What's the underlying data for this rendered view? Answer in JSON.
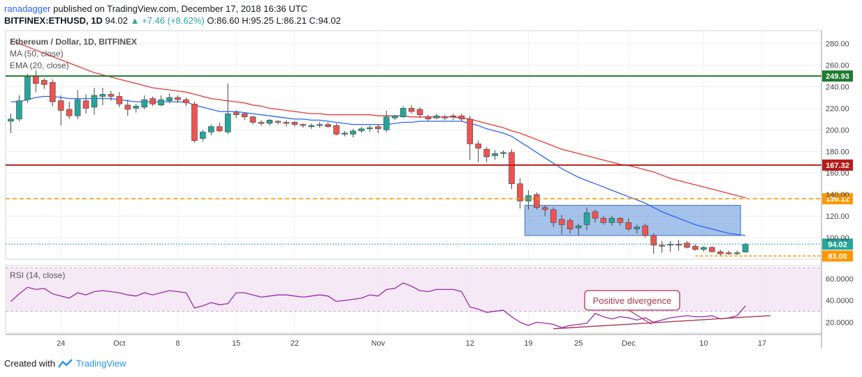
{
  "header": {
    "author": "ranadagger",
    "published": "published on TradingView.com, December 17, 2018 16:36 UTC",
    "symbol": "BITFINEX:ETHUSD, 1D",
    "price": "94.02",
    "change": "▲ +7.46 (+8.62%)",
    "ohlc_o": "O:86.60",
    "ohlc_h": "H:95.25",
    "ohlc_l": "L:86.21",
    "ohlc_c": "C:94.02"
  },
  "legend": {
    "title": "Ethereum / Dollar, 1D, BITFINEX",
    "ma": "MA (50, close)",
    "ema": "EMA (20, close)",
    "rsi": "RSI (14, close)"
  },
  "annotation": "Positive divergence",
  "footer": {
    "created": "Created with",
    "brand": "TradingView"
  },
  "colors": {
    "up": "#26a69a",
    "down": "#ef5350",
    "ma": "#e53935",
    "ema": "#2962ff",
    "support_green": "#1e7a2e",
    "resistance_red": "#b71c1c",
    "orange": "#ff9800",
    "range_box": "#5b8fd9",
    "rsi_line": "#9c27b0",
    "rsi_band": "#f3e5f5"
  },
  "chart_data": [
    {
      "type": "candlestick",
      "title": "Ethereum / Dollar, 1D, BITFINEX",
      "ylim": [
        80,
        292
      ],
      "y_ticks": [
        100,
        120,
        140,
        160,
        180,
        200,
        220,
        240,
        260,
        280
      ],
      "y_tick_labels": [
        "100.00",
        "120.00",
        "140.00",
        "160.00",
        "180.00",
        "200.00",
        "220.00",
        "240.00",
        "260.00",
        "280.00"
      ],
      "x_tick_labels": [
        {
          "index": 6,
          "label": "24"
        },
        {
          "index": 13,
          "label": "Oct"
        },
        {
          "index": 20,
          "label": "8"
        },
        {
          "index": 27,
          "label": "15"
        },
        {
          "index": 34,
          "label": "22"
        },
        {
          "index": 44,
          "label": "Nov"
        },
        {
          "index": 55,
          "label": "12"
        },
        {
          "index": 62,
          "label": "19"
        },
        {
          "index": 68,
          "label": "25"
        },
        {
          "index": 74,
          "label": "Dec"
        },
        {
          "index": 83,
          "label": "10"
        },
        {
          "index": 90,
          "label": "17"
        }
      ],
      "candles": [
        {
          "o": 208,
          "h": 215,
          "l": 197,
          "c": 210
        },
        {
          "o": 210,
          "h": 232,
          "l": 208,
          "c": 227
        },
        {
          "o": 228,
          "h": 252,
          "l": 225,
          "c": 249
        },
        {
          "o": 250,
          "h": 255,
          "l": 235,
          "c": 243
        },
        {
          "o": 246,
          "h": 248,
          "l": 238,
          "c": 242
        },
        {
          "o": 244,
          "h": 247,
          "l": 222,
          "c": 226
        },
        {
          "o": 227,
          "h": 232,
          "l": 204,
          "c": 218
        },
        {
          "o": 219,
          "h": 226,
          "l": 210,
          "c": 213
        },
        {
          "o": 213,
          "h": 237,
          "l": 210,
          "c": 228
        },
        {
          "o": 227,
          "h": 233,
          "l": 215,
          "c": 220
        },
        {
          "o": 221,
          "h": 239,
          "l": 214,
          "c": 232
        },
        {
          "o": 231,
          "h": 239,
          "l": 223,
          "c": 233
        },
        {
          "o": 233,
          "h": 236,
          "l": 227,
          "c": 231
        },
        {
          "o": 231,
          "h": 235,
          "l": 221,
          "c": 224
        },
        {
          "o": 223,
          "h": 228,
          "l": 213,
          "c": 219
        },
        {
          "o": 220,
          "h": 224,
          "l": 216,
          "c": 222
        },
        {
          "o": 221,
          "h": 232,
          "l": 219,
          "c": 228
        },
        {
          "o": 229,
          "h": 231,
          "l": 222,
          "c": 224
        },
        {
          "o": 223,
          "h": 232,
          "l": 222,
          "c": 228
        },
        {
          "o": 227,
          "h": 234,
          "l": 225,
          "c": 230
        },
        {
          "o": 230,
          "h": 232,
          "l": 225,
          "c": 228
        },
        {
          "o": 228,
          "h": 230,
          "l": 222,
          "c": 225
        },
        {
          "o": 224,
          "h": 226,
          "l": 188,
          "c": 190
        },
        {
          "o": 192,
          "h": 200,
          "l": 189,
          "c": 198
        },
        {
          "o": 198,
          "h": 205,
          "l": 195,
          "c": 203
        },
        {
          "o": 203,
          "h": 207,
          "l": 198,
          "c": 199
        },
        {
          "o": 198,
          "h": 243,
          "l": 196,
          "c": 215
        },
        {
          "o": 216,
          "h": 218,
          "l": 211,
          "c": 214
        },
        {
          "o": 215,
          "h": 216,
          "l": 209,
          "c": 212
        },
        {
          "o": 212,
          "h": 213,
          "l": 205,
          "c": 207
        },
        {
          "o": 207,
          "h": 209,
          "l": 204,
          "c": 206
        },
        {
          "o": 206,
          "h": 210,
          "l": 204,
          "c": 209
        },
        {
          "o": 208,
          "h": 209,
          "l": 205,
          "c": 207
        },
        {
          "o": 207,
          "h": 209,
          "l": 203,
          "c": 206
        },
        {
          "o": 207,
          "h": 208,
          "l": 203,
          "c": 205
        },
        {
          "o": 205,
          "h": 206,
          "l": 202,
          "c": 204
        },
        {
          "o": 203,
          "h": 206,
          "l": 201,
          "c": 204
        },
        {
          "o": 204,
          "h": 207,
          "l": 202,
          "c": 205
        },
        {
          "o": 205,
          "h": 207,
          "l": 202,
          "c": 203
        },
        {
          "o": 204,
          "h": 206,
          "l": 195,
          "c": 196
        },
        {
          "o": 196,
          "h": 199,
          "l": 194,
          "c": 197
        },
        {
          "o": 196,
          "h": 201,
          "l": 193,
          "c": 199
        },
        {
          "o": 199,
          "h": 203,
          "l": 197,
          "c": 201
        },
        {
          "o": 201,
          "h": 204,
          "l": 198,
          "c": 202
        },
        {
          "o": 203,
          "h": 205,
          "l": 197,
          "c": 201
        },
        {
          "o": 200,
          "h": 218,
          "l": 198,
          "c": 212
        },
        {
          "o": 211,
          "h": 214,
          "l": 209,
          "c": 213
        },
        {
          "o": 212,
          "h": 222,
          "l": 211,
          "c": 220
        },
        {
          "o": 220,
          "h": 223,
          "l": 215,
          "c": 217
        },
        {
          "o": 219,
          "h": 221,
          "l": 211,
          "c": 214
        },
        {
          "o": 212,
          "h": 214,
          "l": 208,
          "c": 210
        },
        {
          "o": 211,
          "h": 215,
          "l": 210,
          "c": 213
        },
        {
          "o": 212,
          "h": 214,
          "l": 209,
          "c": 211
        },
        {
          "o": 213,
          "h": 215,
          "l": 209,
          "c": 212
        },
        {
          "o": 213,
          "h": 215,
          "l": 208,
          "c": 210
        },
        {
          "o": 210,
          "h": 213,
          "l": 172,
          "c": 187
        },
        {
          "o": 187,
          "h": 190,
          "l": 170,
          "c": 183
        },
        {
          "o": 182,
          "h": 184,
          "l": 170,
          "c": 175
        },
        {
          "o": 176,
          "h": 181,
          "l": 172,
          "c": 178
        },
        {
          "o": 178,
          "h": 181,
          "l": 174,
          "c": 179
        },
        {
          "o": 179,
          "h": 182,
          "l": 145,
          "c": 150
        },
        {
          "o": 150,
          "h": 155,
          "l": 127,
          "c": 134
        },
        {
          "o": 134,
          "h": 144,
          "l": 126,
          "c": 139
        },
        {
          "o": 140,
          "h": 142,
          "l": 126,
          "c": 128
        },
        {
          "o": 128,
          "h": 130,
          "l": 120,
          "c": 126
        },
        {
          "o": 126,
          "h": 128,
          "l": 110,
          "c": 114
        },
        {
          "o": 117,
          "h": 121,
          "l": 103,
          "c": 112
        },
        {
          "o": 116,
          "h": 118,
          "l": 104,
          "c": 108
        },
        {
          "o": 109,
          "h": 113,
          "l": 102,
          "c": 111
        },
        {
          "o": 112,
          "h": 128,
          "l": 107,
          "c": 123
        },
        {
          "o": 124,
          "h": 126,
          "l": 114,
          "c": 118
        },
        {
          "o": 118,
          "h": 120,
          "l": 112,
          "c": 114
        },
        {
          "o": 114,
          "h": 120,
          "l": 111,
          "c": 118
        },
        {
          "o": 118,
          "h": 119,
          "l": 111,
          "c": 114
        },
        {
          "o": 114,
          "h": 118,
          "l": 106,
          "c": 108
        },
        {
          "o": 108,
          "h": 112,
          "l": 104,
          "c": 110
        },
        {
          "o": 111,
          "h": 113,
          "l": 100,
          "c": 102
        },
        {
          "o": 102,
          "h": 104,
          "l": 85,
          "c": 93
        },
        {
          "o": 93,
          "h": 97,
          "l": 86,
          "c": 92
        },
        {
          "o": 93,
          "h": 97,
          "l": 87,
          "c": 94
        },
        {
          "o": 94,
          "h": 98,
          "l": 88,
          "c": 93
        },
        {
          "o": 95,
          "h": 97,
          "l": 90,
          "c": 91
        },
        {
          "o": 92,
          "h": 94,
          "l": 88,
          "c": 89
        },
        {
          "o": 89,
          "h": 92,
          "l": 87,
          "c": 91
        },
        {
          "o": 91,
          "h": 92,
          "l": 86,
          "c": 87
        },
        {
          "o": 87,
          "h": 89,
          "l": 83,
          "c": 85
        },
        {
          "o": 86,
          "h": 88,
          "l": 84,
          "c": 85
        },
        {
          "o": 85,
          "h": 88,
          "l": 84,
          "c": 86
        },
        {
          "o": 86.6,
          "h": 95.25,
          "l": 86.21,
          "c": 94.02
        }
      ],
      "series": [
        {
          "name": "MA (50, close)",
          "values": [
            283,
            280,
            277,
            274,
            271,
            268,
            265,
            262,
            259,
            256,
            253,
            251,
            249,
            247,
            245,
            243,
            241,
            239,
            238,
            237,
            236,
            235,
            233,
            231,
            229,
            228,
            227,
            226,
            225,
            223,
            222,
            220,
            219,
            218,
            217,
            216,
            215,
            215,
            214,
            214,
            214,
            214,
            214,
            214,
            213,
            213,
            213,
            213,
            212,
            212,
            212,
            212,
            212,
            212,
            211,
            210,
            208,
            206,
            204,
            202,
            199,
            197,
            194,
            191,
            188,
            185,
            182,
            180,
            178,
            176,
            174,
            172,
            170,
            168,
            167,
            165,
            163,
            161,
            158,
            155,
            153,
            151,
            149,
            147,
            145,
            143,
            141,
            139,
            137
          ]
        },
        {
          "name": "EMA (20, close)",
          "values": [
            226,
            226,
            228,
            230,
            231,
            231,
            230,
            229,
            229,
            229,
            229,
            229,
            229,
            228,
            227,
            226,
            226,
            226,
            226,
            226,
            226,
            226,
            223,
            221,
            219,
            217,
            217,
            217,
            216,
            215,
            214,
            213,
            212,
            211,
            210,
            210,
            209,
            209,
            208,
            207,
            206,
            205,
            205,
            205,
            205,
            205,
            206,
            207,
            207,
            208,
            208,
            208,
            208,
            208,
            208,
            206,
            204,
            201,
            199,
            197,
            194,
            189,
            184,
            179,
            174,
            169,
            164,
            160,
            156,
            153,
            150,
            147,
            144,
            141,
            138,
            135,
            132,
            128,
            124,
            121,
            118,
            115,
            112,
            110,
            108,
            106,
            104,
            103,
            102
          ]
        },
        {
          "name": "RSI (14, close)",
          "values": [
            39,
            46,
            52,
            50,
            51,
            46,
            44,
            42,
            47,
            45,
            48,
            49,
            48,
            47,
            45,
            44,
            47,
            45,
            47,
            49,
            48,
            47,
            33,
            35,
            38,
            36,
            37,
            47,
            47,
            45,
            43,
            44,
            45,
            45,
            44,
            43,
            44,
            45,
            44,
            39,
            40,
            41,
            42,
            45,
            44,
            50,
            51,
            56,
            53,
            49,
            48,
            50,
            50,
            50,
            48,
            34,
            32,
            29,
            30,
            31,
            25,
            20,
            17,
            20,
            19,
            18,
            15,
            17,
            18,
            19,
            28,
            25,
            23,
            25,
            24,
            22,
            24,
            20,
            22,
            24,
            25,
            26,
            25,
            25,
            26,
            23,
            24,
            26,
            35
          ]
        }
      ],
      "rsi_ylim": [
        10,
        72
      ],
      "rsi_ticks": [
        20,
        40,
        60
      ],
      "rsi_tick_labels": [
        "20.0000",
        "40.0000",
        "60.0000"
      ],
      "rsi_band": [
        30,
        70
      ],
      "levels": [
        {
          "value": 249.93,
          "label": "249.93",
          "style": "solid",
          "color": "#1e7a2e"
        },
        {
          "value": 167.32,
          "label": "167.32",
          "style": "solid",
          "color": "#b71c1c"
        },
        {
          "value": 136.12,
          "label": "136.12",
          "style": "dashed",
          "color": "#ff9800"
        },
        {
          "value": 83.0,
          "label": "83.00",
          "style": "dashed-short",
          "color": "#ff9800"
        }
      ],
      "last_price": {
        "value": 94.02,
        "label": "94.02"
      },
      "range_box": {
        "start_index": 62,
        "end_index": 87,
        "low": 102,
        "high": 130
      },
      "rsi_trendline": {
        "start_index": 65,
        "end_index": 91,
        "start_value": 14,
        "end_value": 26
      }
    }
  ]
}
